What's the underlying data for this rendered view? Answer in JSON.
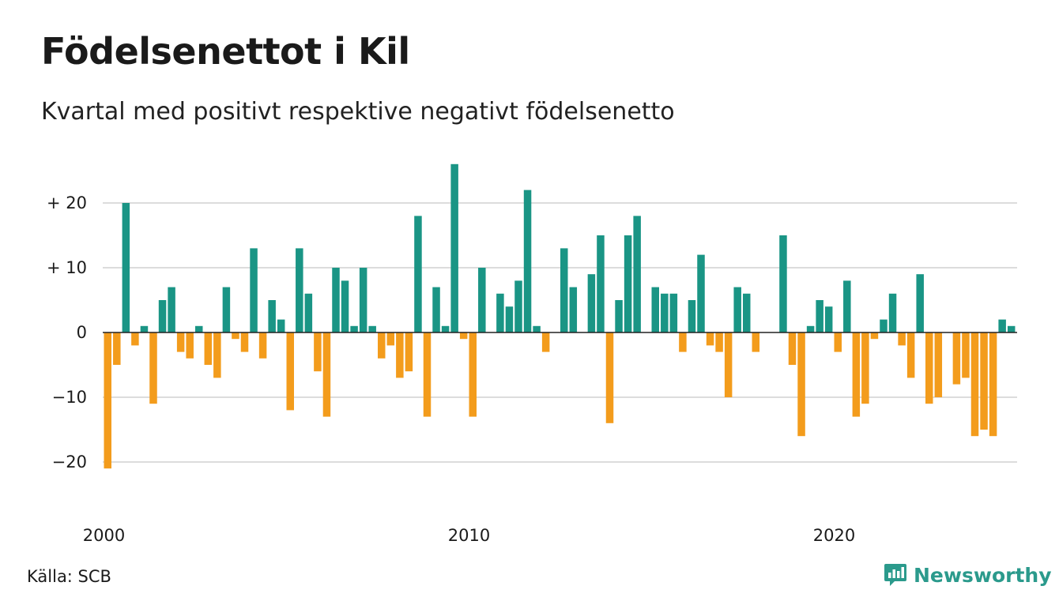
{
  "header": {
    "title": "Födelsenettot i Kil",
    "subtitle": "Kvartal med positivt respektive negativt födelsenetto"
  },
  "footer": {
    "source": "Källa: SCB",
    "brand": "Newsworthy"
  },
  "colors": {
    "positive": "#1a9585",
    "negative": "#f39c1c",
    "grid": "#dcdcdc",
    "zero_line": "#222222",
    "brand": "#2b9a8c"
  },
  "chart_data": {
    "type": "bar",
    "title": "Födelsenettot i Kil",
    "subtitle": "Kvartal med positivt respektive negativt födelsenetto",
    "x_start": "2000 Q1",
    "x_ticks": [
      {
        "value": 2000,
        "label": "2000"
      },
      {
        "value": 2010,
        "label": "2010"
      },
      {
        "value": 2020,
        "label": "2020"
      }
    ],
    "y_ticks": [
      {
        "value": 20,
        "label": "+ 20"
      },
      {
        "value": 10,
        "label": "+ 10"
      },
      {
        "value": 0,
        "label": "0"
      },
      {
        "value": -10,
        "label": "−10"
      },
      {
        "value": -20,
        "label": "−20"
      }
    ],
    "ylim": [
      -25,
      28
    ],
    "grid": true,
    "values": [
      -21,
      -5,
      20,
      -2,
      1,
      -11,
      5,
      7,
      -3,
      -4,
      1,
      -5,
      -7,
      7,
      -1,
      -3,
      13,
      -4,
      5,
      2,
      -12,
      13,
      6,
      -6,
      -13,
      10,
      8,
      1,
      10,
      1,
      -4,
      -2,
      -7,
      -6,
      18,
      -13,
      7,
      1,
      26,
      -1,
      -13,
      10,
      0,
      6,
      4,
      8,
      22,
      1,
      -3,
      0,
      13,
      7,
      0,
      9,
      15,
      -14,
      5,
      15,
      18,
      0,
      7,
      6,
      6,
      -3,
      5,
      12,
      -2,
      -3,
      -10,
      7,
      6,
      -3,
      0,
      0,
      15,
      -5,
      -16,
      1,
      5,
      4,
      -3,
      8,
      -13,
      -11,
      -1,
      2,
      6,
      -2,
      -7,
      9,
      -11,
      -10,
      0,
      -8,
      -7,
      -16,
      -15,
      -16,
      2,
      1
    ]
  }
}
